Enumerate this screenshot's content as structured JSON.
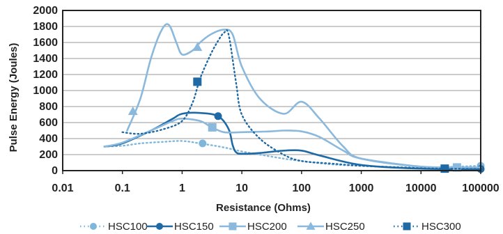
{
  "chart_data": {
    "type": "line",
    "title": "",
    "xlabel": "Resistance (Ohms)",
    "ylabel": "Pulse Energy (Joules)",
    "x_scale": "log",
    "xlim": [
      0.01,
      100000
    ],
    "ylim": [
      0,
      2000
    ],
    "x_ticks": [
      0.01,
      0.1,
      1,
      10,
      100,
      1000,
      10000,
      100000
    ],
    "x_tick_labels": [
      "0.01",
      "0.1",
      "1",
      "10",
      "100",
      "1000",
      "10000",
      "100000"
    ],
    "y_ticks": [
      0,
      200,
      400,
      600,
      800,
      1000,
      1200,
      1400,
      1600,
      1800,
      2000
    ],
    "y_tick_labels": [
      "0",
      "200",
      "400",
      "600",
      "800",
      "1000",
      "1200",
      "1400",
      "1600",
      "1800",
      "2000"
    ],
    "grid": "horizontal",
    "legend_position": "bottom",
    "series": [
      {
        "name": "HSC100",
        "color": "#7fb6dc",
        "line": "dotted",
        "marker": "circle",
        "x": [
          0.05,
          0.1,
          0.2,
          0.5,
          1,
          2,
          5,
          10,
          20,
          50,
          100,
          300,
          1000,
          10000,
          100000
        ],
        "y": [
          300,
          310,
          340,
          360,
          370,
          340,
          290,
          240,
          200,
          150,
          120,
          80,
          60,
          40,
          60
        ],
        "marker_x": [
          2.2,
          100000
        ],
        "marker_y": [
          340,
          60
        ]
      },
      {
        "name": "HSC150",
        "color": "#1f6aa5",
        "line": "solid",
        "marker": "circle",
        "x": [
          0.05,
          0.1,
          0.3,
          0.7,
          1,
          2,
          4,
          6,
          7,
          8,
          10,
          20,
          50,
          100,
          200,
          1000,
          10000,
          100000
        ],
        "y": [
          300,
          340,
          500,
          650,
          710,
          720,
          680,
          520,
          320,
          230,
          210,
          220,
          250,
          250,
          190,
          70,
          25,
          20
        ],
        "marker_x": [
          4,
          100000
        ],
        "marker_y": [
          680,
          20
        ]
      },
      {
        "name": "HSC200",
        "color": "#8ab9dd",
        "line": "solid",
        "marker": "square",
        "x": [
          0.05,
          0.1,
          0.3,
          0.7,
          1,
          2,
          3,
          5,
          10,
          30,
          50,
          100,
          200,
          500,
          1000,
          10000,
          40000,
          100000
        ],
        "y": [
          300,
          350,
          500,
          620,
          650,
          620,
          550,
          480,
          480,
          490,
          500,
          490,
          420,
          250,
          150,
          50,
          40,
          40
        ],
        "marker_x": [
          3.2,
          40000
        ],
        "marker_y": [
          540,
          40
        ]
      },
      {
        "name": "HSC250",
        "color": "#8ab9dd",
        "line": "solid",
        "marker": "triangle",
        "x": [
          0.12,
          0.2,
          0.3,
          0.45,
          0.6,
          0.8,
          1,
          1.5,
          2,
          3,
          5,
          7,
          10,
          20,
          50,
          100,
          200,
          500,
          1000,
          10000,
          100000
        ],
        "y": [
          500,
          900,
          1400,
          1750,
          1820,
          1600,
          1450,
          1500,
          1600,
          1700,
          1760,
          1700,
          1300,
          900,
          710,
          860,
          650,
          300,
          150,
          50,
          40
        ],
        "marker_x": [
          0.15,
          1.8
        ],
        "marker_y": [
          740,
          1540
        ]
      },
      {
        "name": "HSC300",
        "color": "#1f6aa5",
        "line": "dotted",
        "marker": "square",
        "x": [
          0.1,
          0.2,
          0.5,
          1,
          1.5,
          2,
          3,
          4,
          5,
          6,
          8,
          10,
          20,
          50,
          100,
          300,
          1000,
          10000,
          25000,
          100000
        ],
        "y": [
          480,
          460,
          520,
          620,
          850,
          1150,
          1450,
          1620,
          1720,
          1700,
          1100,
          700,
          400,
          200,
          120,
          90,
          60,
          30,
          25,
          20
        ],
        "marker_x": [
          1.8,
          25000
        ],
        "marker_y": [
          1110,
          25
        ]
      }
    ]
  }
}
